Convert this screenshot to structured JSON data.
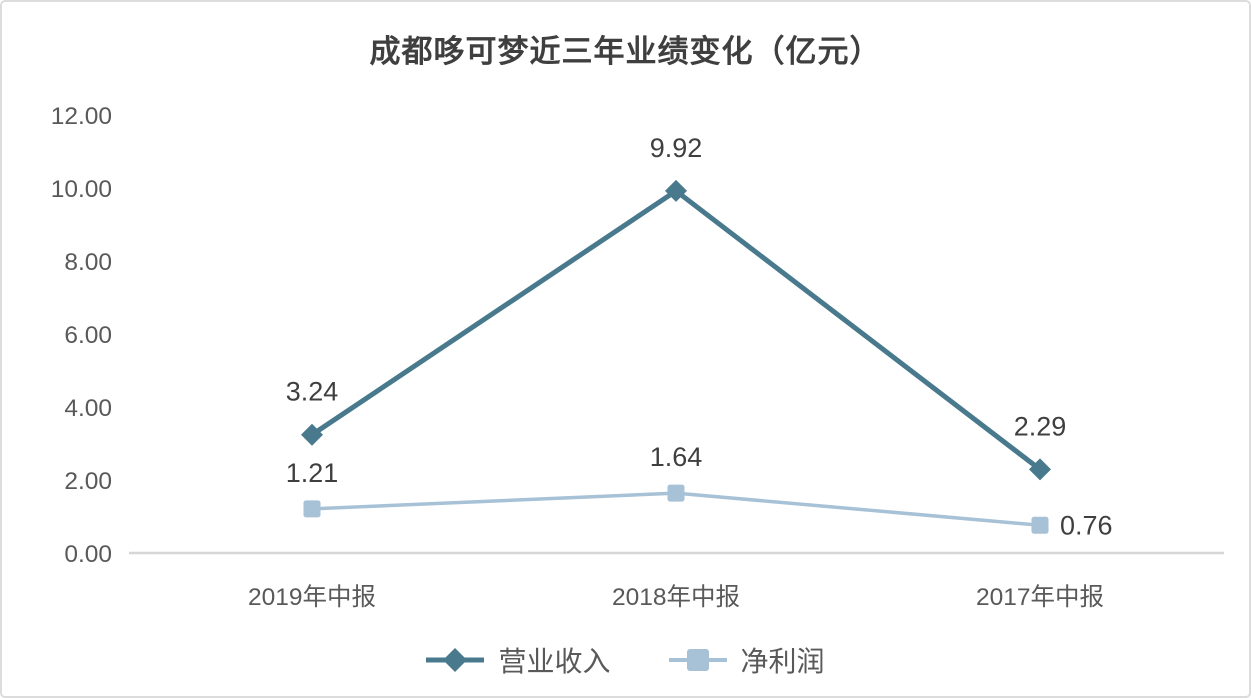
{
  "frame": {
    "border_color": "#dcdcdc",
    "background": "#ffffff"
  },
  "chart_data": {
    "type": "line",
    "title": "成都哆可梦近三年业绩变化（亿元）",
    "categories": [
      "2019年中报",
      "2018年中报",
      "2017年中报"
    ],
    "series": [
      {
        "name": "营业收入",
        "values": [
          3.24,
          9.92,
          2.29
        ],
        "labels": [
          "3.24",
          "9.92",
          "2.29"
        ],
        "label_positions": [
          "above",
          "above",
          "above"
        ],
        "color": "#48798C",
        "marker": "diamond"
      },
      {
        "name": "净利润",
        "values": [
          1.21,
          1.64,
          0.76
        ],
        "labels": [
          "1.21",
          "1.64",
          "0.76"
        ],
        "label_positions": [
          "above",
          "above",
          "right"
        ],
        "color": "#A7C1D6",
        "marker": "square"
      }
    ],
    "xlabel": "",
    "ylabel": "",
    "y_axis": {
      "min": 0,
      "max": 12,
      "tick_step": 2,
      "tick_labels": [
        "0.00",
        "2.00",
        "4.00",
        "6.00",
        "8.00",
        "10.00",
        "12.00"
      ]
    },
    "grid": false,
    "legend_position": "bottom",
    "axis_line_color": "#d6d6d6",
    "tick_text_color": "#595959",
    "data_label_color": "#3f3f3f"
  }
}
